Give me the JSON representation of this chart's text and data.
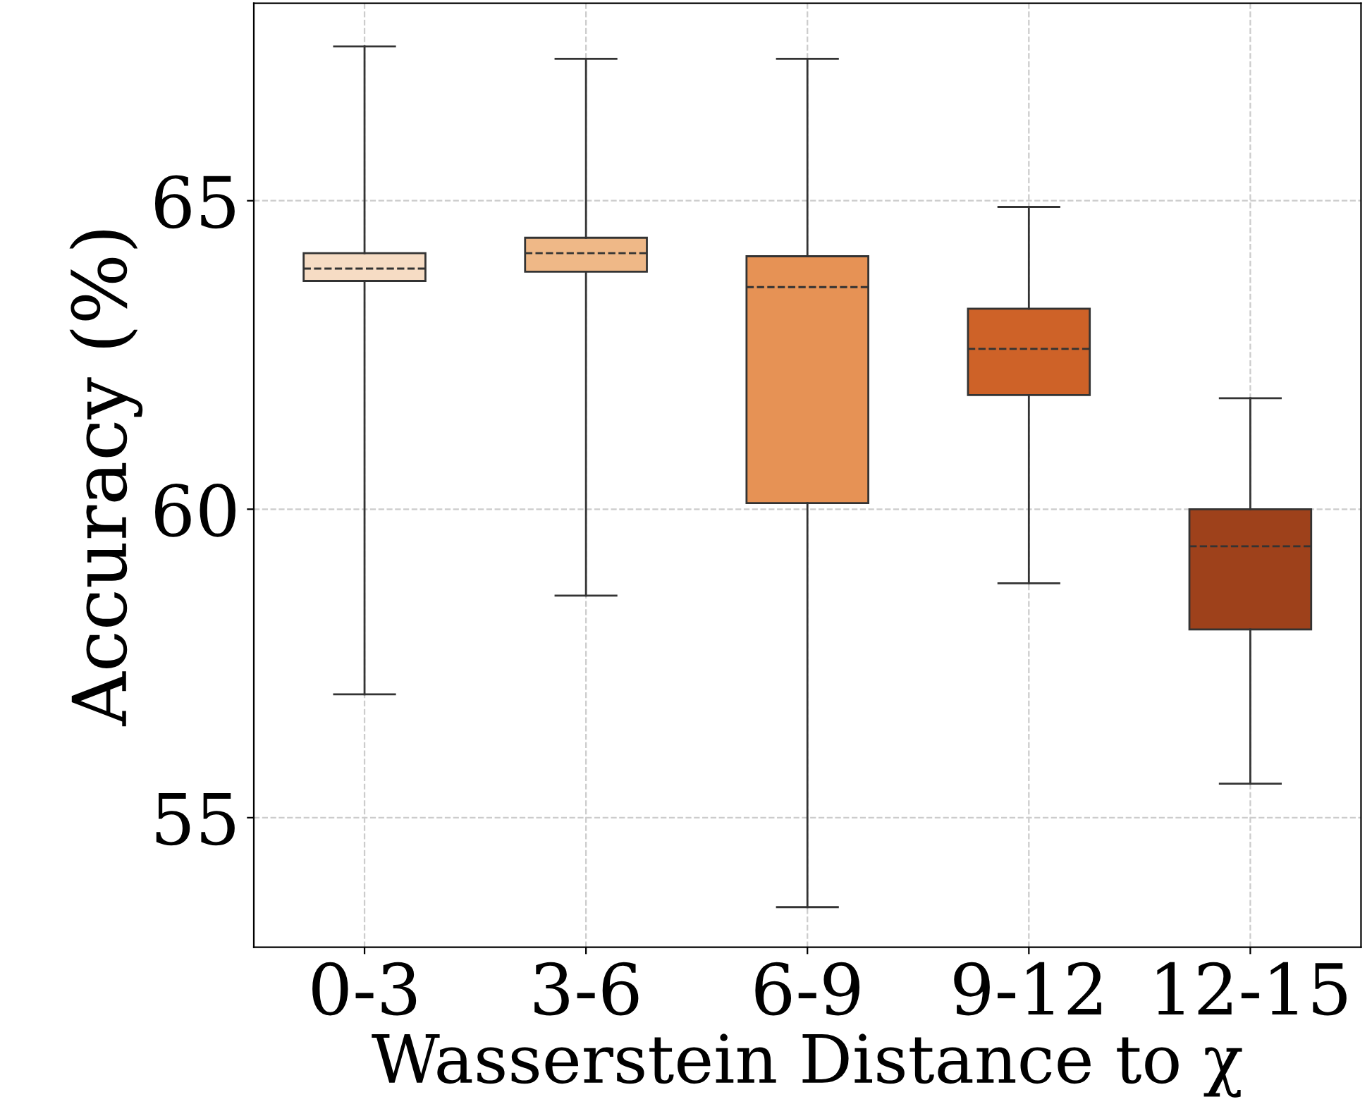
{
  "chart_data": {
    "type": "box",
    "xlabel": "Wasserstein Distance to χ",
    "ylabel": "Accuracy (%)",
    "categories": [
      "0-3",
      "3-6",
      "6-9",
      "9-12",
      "12-15"
    ],
    "boxes": [
      {
        "low": 57.0,
        "q1": 63.7,
        "median": 63.9,
        "q3": 64.15,
        "high": 67.5
      },
      {
        "low": 58.6,
        "q1": 63.85,
        "median": 64.15,
        "q3": 64.4,
        "high": 67.3
      },
      {
        "low": 53.55,
        "q1": 60.1,
        "median": 63.6,
        "q3": 64.1,
        "high": 67.3
      },
      {
        "low": 58.8,
        "q1": 61.85,
        "median": 62.6,
        "q3": 63.25,
        "high": 64.9
      },
      {
        "low": 55.55,
        "q1": 58.05,
        "median": 59.4,
        "q3": 60.0,
        "high": 61.8
      }
    ],
    "colors": [
      "#f6dcc4",
      "#efb887",
      "#e69255",
      "#ce6228",
      "#9e411b"
    ],
    "ylim": [
      52.9,
      68.2
    ],
    "yticks": [
      55,
      60,
      65
    ],
    "grid": true
  }
}
